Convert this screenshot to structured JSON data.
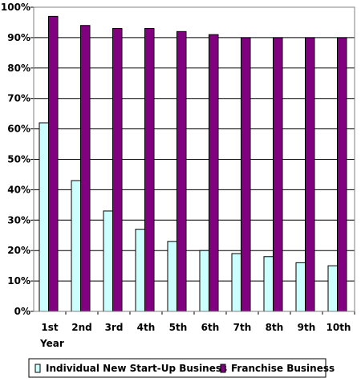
{
  "chart_data": {
    "type": "bar",
    "categories": [
      "1st",
      "2nd",
      "3rd",
      "4th",
      "5th",
      "6th",
      "7th",
      "8th",
      "9th",
      "10th"
    ],
    "series": [
      {
        "name": "Individual New Start-Up Business",
        "color": "#ccffff",
        "values": [
          62,
          43,
          33,
          27,
          23,
          20,
          19,
          18,
          16,
          15
        ]
      },
      {
        "name": "Franchise Business",
        "color": "#800080",
        "values": [
          97,
          94,
          93,
          93,
          92,
          91,
          90,
          90,
          90,
          90
        ]
      }
    ],
    "xlabel": "Year",
    "ylabel": "",
    "ylim": [
      0,
      100
    ],
    "yticks": [
      "0%",
      "10%",
      "20%",
      "30%",
      "40%",
      "50%",
      "60%",
      "70%",
      "80%",
      "90%",
      "100%"
    ],
    "grid": true,
    "legend_position": "bottom"
  }
}
